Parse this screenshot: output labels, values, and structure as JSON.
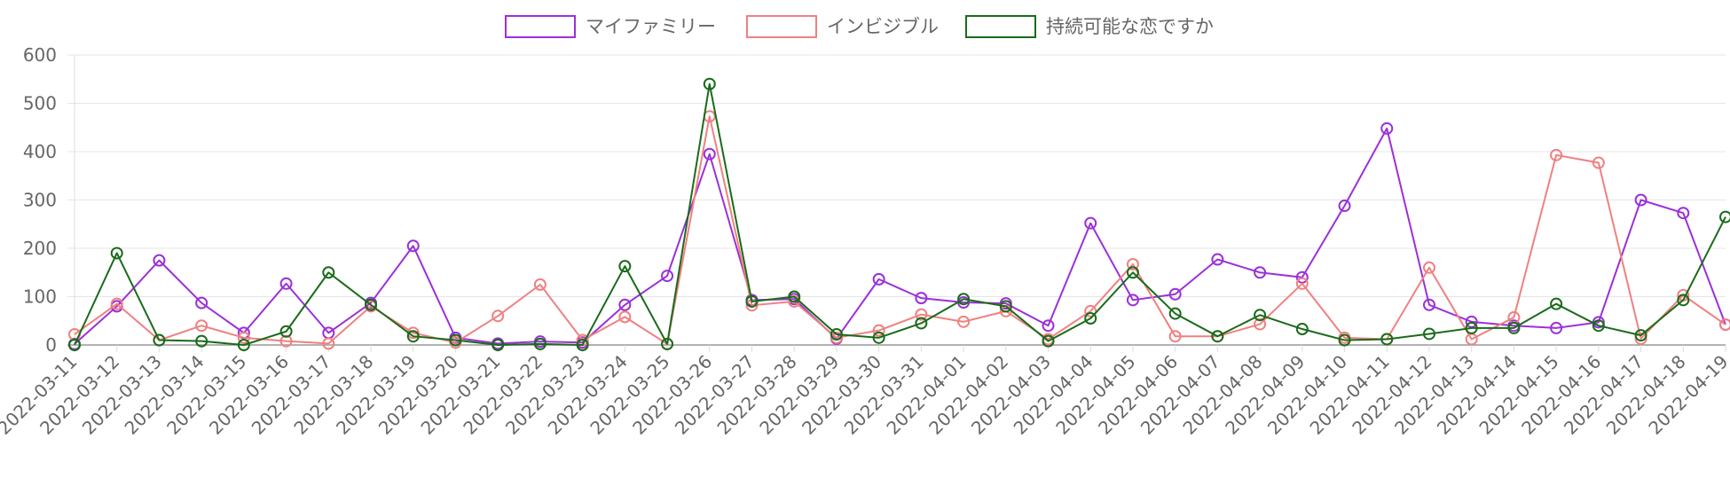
{
  "chart_data": {
    "type": "line",
    "title": "",
    "xlabel": "",
    "ylabel": "",
    "ylim": [
      0,
      600
    ],
    "yticks": [
      0,
      100,
      200,
      300,
      400,
      500,
      600
    ],
    "grid": true,
    "legend_position": "top-center",
    "categories": [
      "2022-03-11",
      "2022-03-12",
      "2022-03-13",
      "2022-03-14",
      "2022-03-15",
      "2022-03-16",
      "2022-03-17",
      "2022-03-18",
      "2022-03-19",
      "2022-03-20",
      "2022-03-21",
      "2022-03-22",
      "2022-03-23",
      "2022-03-24",
      "2022-03-25",
      "2022-03-26",
      "2022-03-27",
      "2022-03-28",
      "2022-03-29",
      "2022-03-30",
      "2022-03-31",
      "2022-04-01",
      "2022-04-02",
      "2022-04-03",
      "2022-04-04",
      "2022-04-05",
      "2022-04-06",
      "2022-04-07",
      "2022-04-08",
      "2022-04-09",
      "2022-04-10",
      "2022-04-11",
      "2022-04-12",
      "2022-04-13",
      "2022-04-14",
      "2022-04-15",
      "2022-04-16",
      "2022-04-17",
      "2022-04-18",
      "2022-04-19"
    ],
    "series": [
      {
        "name": "マイファミリー",
        "color": "#9b30d9",
        "values": [
          2,
          80,
          175,
          87,
          25,
          127,
          25,
          87,
          205,
          15,
          3,
          7,
          5,
          83,
          143,
          395,
          93,
          95,
          13,
          136,
          97,
          88,
          86,
          40,
          252,
          93,
          105,
          177,
          150,
          140,
          288,
          448,
          83,
          48,
          40,
          35,
          47,
          300,
          273,
          42
        ]
      },
      {
        "name": "インビジブル",
        "color": "#f08080",
        "values": [
          22,
          85,
          10,
          40,
          15,
          8,
          3,
          80,
          25,
          5,
          60,
          125,
          10,
          58,
          2,
          473,
          82,
          90,
          15,
          30,
          63,
          48,
          70,
          12,
          70,
          167,
          18,
          18,
          43,
          127,
          15,
          12,
          160,
          12,
          57,
          393,
          377,
          13,
          103,
          42
        ]
      },
      {
        "name": "持続可能な恋ですか",
        "color": "#1a6b1a",
        "values": [
          0,
          190,
          10,
          8,
          0,
          28,
          150,
          83,
          18,
          10,
          0,
          2,
          0,
          163,
          2,
          540,
          90,
          100,
          22,
          15,
          45,
          95,
          80,
          8,
          55,
          150,
          65,
          18,
          62,
          33,
          10,
          12,
          23,
          35,
          35,
          85,
          40,
          20,
          93,
          265
        ]
      }
    ]
  }
}
